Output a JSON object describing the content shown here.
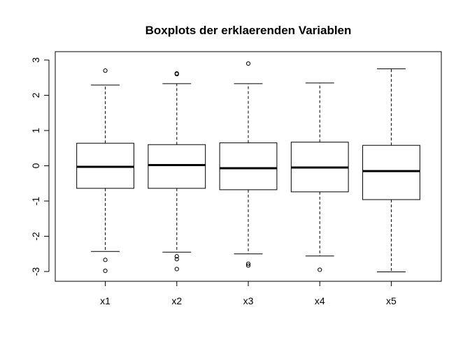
{
  "chart_data": {
    "type": "boxplot",
    "title": "Boxplots der erklaerenden Variablen",
    "xlabel": "",
    "ylabel": "",
    "ylim": [
      -3.3,
      3.3
    ],
    "yticks": [
      -3,
      -2,
      -1,
      0,
      1,
      2,
      3
    ],
    "ytick_labels": [
      "-3",
      "-2",
      "-1",
      "0",
      "1",
      "2",
      "3"
    ],
    "grid": false,
    "series": [
      {
        "name": "x1",
        "whisker_low": -2.43,
        "q1": -0.64,
        "median": -0.03,
        "q3": 0.64,
        "whisker_high": 2.29,
        "outliers": [
          2.7,
          -2.67,
          -2.98
        ]
      },
      {
        "name": "x2",
        "whisker_low": -2.45,
        "q1": -0.64,
        "median": 0.02,
        "q3": 0.6,
        "whisker_high": 2.33,
        "outliers": [
          2.62,
          2.6,
          -2.57,
          -2.65,
          -2.93
        ]
      },
      {
        "name": "x3",
        "whisker_low": -2.5,
        "q1": -0.68,
        "median": -0.07,
        "q3": 0.65,
        "whisker_high": 2.33,
        "outliers": [
          2.9,
          -2.78,
          -2.83
        ]
      },
      {
        "name": "x4",
        "whisker_low": -2.56,
        "q1": -0.74,
        "median": -0.05,
        "q3": 0.67,
        "whisker_high": 2.35,
        "outliers": [
          -2.95
        ]
      },
      {
        "name": "x5",
        "whisker_low": -3.01,
        "q1": -0.96,
        "median": -0.15,
        "q3": 0.58,
        "whisker_high": 2.75,
        "outliers": []
      }
    ]
  }
}
